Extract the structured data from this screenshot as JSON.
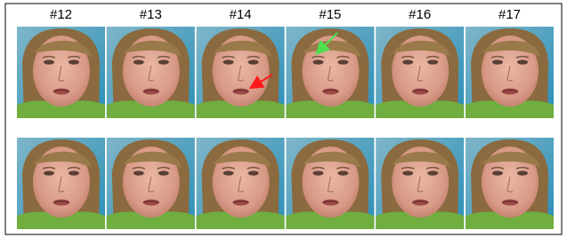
{
  "frames": {
    "labels": [
      "#12",
      "#13",
      "#14",
      "#15",
      "#16",
      "#17"
    ]
  }
}
